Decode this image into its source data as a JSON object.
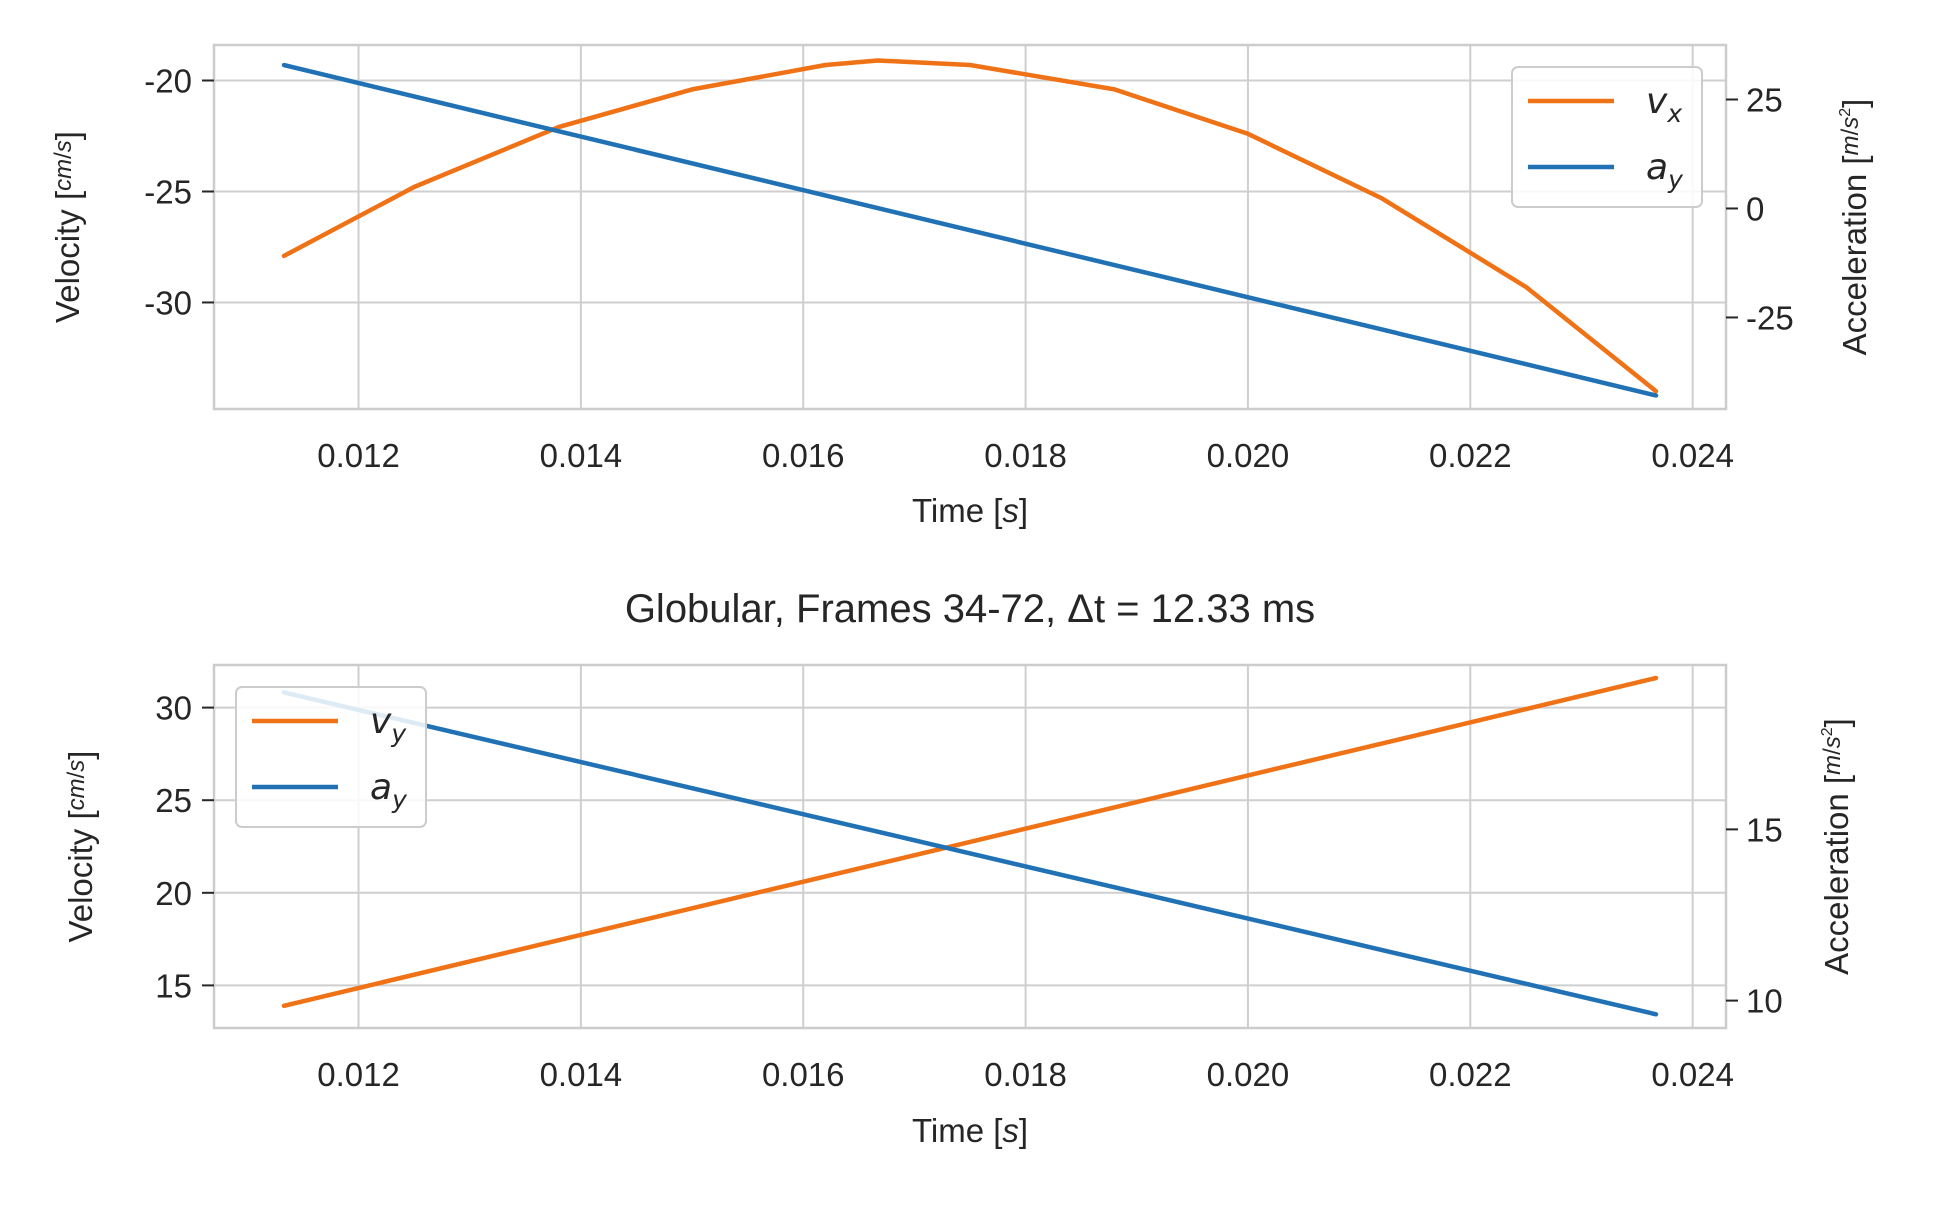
{
  "colors": {
    "orange": "#f07216",
    "blue": "#2171b5",
    "grid": "#cfcfcf",
    "spine": "#cccccc",
    "text": "#262626"
  },
  "chart_data": [
    {
      "type": "line",
      "title": "",
      "xlabel": "Time [s]",
      "ylabel": "Velocity [cm/s]",
      "ylabel2": "Acceleration [m/s²]",
      "xlim": [
        0.0107,
        0.0243
      ],
      "ylim": [
        -34.8,
        -18.4
      ],
      "y2lim": [
        -46.0,
        37.5
      ],
      "xticks": [
        0.012,
        0.014,
        0.016,
        0.018,
        0.02,
        0.022,
        0.024
      ],
      "xtick_labels": [
        "0.012",
        "0.014",
        "0.016",
        "0.018",
        "0.020",
        "0.022",
        "0.024"
      ],
      "yticks": [
        -20,
        -25,
        -30
      ],
      "ytick_labels": [
        "-20",
        "-25",
        "-30"
      ],
      "y2ticks": [
        25,
        0,
        -25
      ],
      "y2tick_labels": [
        "25",
        "0",
        "-25"
      ],
      "legend_loc": "upper right",
      "grid": true,
      "series": [
        {
          "name": "v_x",
          "label_main": "v",
          "label_sub": "x",
          "axis": "left",
          "color": "orange",
          "x": [
            0.01133,
            0.0125,
            0.0138,
            0.015,
            0.0162,
            0.01667,
            0.0175,
            0.0188,
            0.02,
            0.0212,
            0.0225,
            0.02367
          ],
          "y": [
            -27.9,
            -24.8,
            -22.1,
            -20.4,
            -19.3,
            -19.1,
            -19.3,
            -20.4,
            -22.4,
            -25.3,
            -29.3,
            -34.0
          ]
        },
        {
          "name": "a_y",
          "label_main": "a",
          "label_sub": "y",
          "axis": "right",
          "color": "blue",
          "x": [
            0.01133,
            0.02367
          ],
          "y": [
            32.9,
            -42.9
          ]
        }
      ]
    },
    {
      "type": "line",
      "title": "Globular, Frames 34-72, Δt = 12.33 ms",
      "xlabel": "Time [s]",
      "ylabel": "Velocity [cm/s]",
      "ylabel2": "Acceleration [m/s²]",
      "xlim": [
        0.0107,
        0.0243
      ],
      "ylim": [
        12.7,
        32.3
      ],
      "y2lim": [
        9.2,
        19.8
      ],
      "xticks": [
        0.012,
        0.014,
        0.016,
        0.018,
        0.02,
        0.022,
        0.024
      ],
      "xtick_labels": [
        "0.012",
        "0.014",
        "0.016",
        "0.018",
        "0.020",
        "0.022",
        "0.024"
      ],
      "yticks": [
        30,
        25,
        20,
        15
      ],
      "ytick_labels": [
        "30",
        "25",
        "20",
        "15"
      ],
      "y2ticks": [
        15,
        10
      ],
      "y2tick_labels": [
        "15",
        "10"
      ],
      "legend_loc": "upper left",
      "grid": true,
      "series": [
        {
          "name": "v_y",
          "label_main": "v",
          "label_sub": "y",
          "axis": "left",
          "color": "orange",
          "x": [
            0.01133,
            0.02367
          ],
          "y": [
            13.9,
            31.6
          ]
        },
        {
          "name": "a_y",
          "label_main": "a",
          "label_sub": "y",
          "axis": "right",
          "color": "blue",
          "x": [
            0.01133,
            0.02367
          ],
          "y": [
            19.0,
            9.6
          ]
        }
      ]
    }
  ]
}
